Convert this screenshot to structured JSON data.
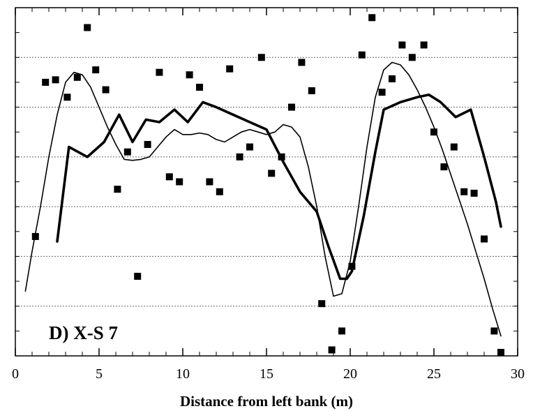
{
  "chart_data": {
    "type": "scatter",
    "panel_label": "D) X-S 7",
    "xlabel": "Distance from left bank (m)",
    "ylabel": "",
    "xlim": [
      0,
      30
    ],
    "ylim": [
      0,
      7
    ],
    "x_ticks": [
      0,
      5,
      10,
      15,
      20,
      25,
      30
    ],
    "x_tick_labels": [
      "0",
      "5",
      "10",
      "15",
      "20",
      "25",
      "30"
    ],
    "y_tick_labels_shown": false,
    "grid": "horizontal-dotted",
    "legend": "none",
    "colors": {
      "marks": "#000000",
      "grid": "#666666",
      "background": "#ffffff"
    },
    "series": [
      {
        "kind": "markers",
        "marker": "square",
        "x": [
          1.2,
          1.8,
          2.4,
          3.1,
          3.7,
          4.3,
          4.8,
          5.4,
          6.1,
          6.7,
          7.3,
          7.9,
          8.6,
          9.2,
          9.8,
          10.4,
          11.0,
          11.6,
          12.2,
          12.8,
          13.4,
          14.0,
          14.7,
          15.3,
          15.9,
          16.5,
          17.1,
          17.7,
          18.3,
          18.9,
          19.5,
          20.1,
          20.7,
          21.3,
          21.9,
          22.5,
          23.1,
          23.7,
          24.4,
          25.0,
          25.6,
          26.2,
          26.8,
          27.4,
          28.0,
          28.6,
          29.0
        ],
        "y": [
          2.4,
          5.5,
          5.55,
          5.2,
          5.6,
          6.6,
          5.75,
          5.35,
          3.35,
          4.1,
          1.6,
          4.25,
          5.7,
          3.6,
          3.5,
          5.65,
          5.4,
          3.5,
          3.3,
          5.77,
          4.0,
          4.2,
          6.0,
          3.67,
          4.0,
          5.0,
          5.9,
          5.33,
          1.05,
          0.12,
          0.5,
          1.8,
          6.05,
          6.8,
          5.3,
          5.57,
          6.25,
          6.0,
          6.25,
          4.5,
          3.8,
          4.2,
          3.3,
          3.27,
          2.35,
          0.5,
          0.05
        ]
      },
      {
        "kind": "line",
        "style": "thin",
        "x": [
          0.6,
          1.0,
          1.5,
          2.0,
          2.5,
          3.0,
          3.5,
          4.0,
          4.5,
          5.0,
          5.5,
          6.0,
          6.5,
          7.0,
          7.5,
          8.0,
          8.5,
          9.0,
          9.5,
          10.0,
          10.5,
          11.0,
          11.5,
          12.0,
          12.5,
          13.0,
          13.5,
          14.0,
          14.5,
          15.0,
          15.5,
          16.0,
          16.5,
          17.0,
          17.5,
          18.0,
          18.5,
          19.0,
          19.5,
          20.0,
          20.5,
          21.0,
          21.5,
          22.0,
          22.5,
          23.0,
          23.5,
          24.0,
          24.5,
          25.0,
          25.5,
          26.0,
          26.5,
          27.0,
          27.5,
          28.0,
          28.5,
          29.0
        ],
        "y": [
          1.3,
          2.1,
          3.0,
          4.0,
          4.85,
          5.5,
          5.7,
          5.65,
          5.4,
          5.0,
          4.6,
          4.25,
          3.95,
          3.93,
          3.95,
          4.0,
          4.2,
          4.4,
          4.55,
          4.45,
          4.45,
          4.48,
          4.45,
          4.35,
          4.3,
          4.4,
          4.5,
          4.55,
          4.5,
          4.45,
          4.5,
          4.65,
          4.6,
          4.4,
          3.8,
          3.0,
          2.0,
          1.2,
          1.25,
          1.9,
          3.0,
          4.2,
          5.2,
          5.75,
          5.9,
          5.85,
          5.65,
          5.35,
          5.0,
          4.6,
          4.15,
          3.65,
          3.15,
          2.65,
          2.1,
          1.55,
          0.95,
          0.4
        ]
      },
      {
        "kind": "line",
        "style": "thick",
        "x": [
          2.5,
          3.2,
          4.3,
          5.3,
          6.2,
          7.0,
          7.8,
          8.6,
          9.5,
          10.3,
          11.2,
          12.0,
          13.0,
          14.0,
          15.0,
          16.0,
          17.0,
          18.0,
          18.7,
          19.4,
          19.8,
          20.1,
          20.8,
          21.5,
          22.0,
          23.0,
          24.0,
          24.7,
          25.4,
          26.3,
          27.2,
          28.0,
          28.7,
          29.0
        ],
        "y": [
          2.3,
          4.2,
          4.0,
          4.3,
          4.85,
          4.3,
          4.75,
          4.7,
          4.95,
          4.7,
          5.1,
          5.0,
          4.85,
          4.7,
          4.55,
          3.9,
          3.3,
          2.9,
          2.2,
          1.55,
          1.55,
          1.7,
          2.8,
          4.1,
          4.95,
          5.1,
          5.2,
          5.25,
          5.1,
          4.8,
          4.95,
          4.0,
          3.1,
          2.6
        ]
      }
    ]
  }
}
